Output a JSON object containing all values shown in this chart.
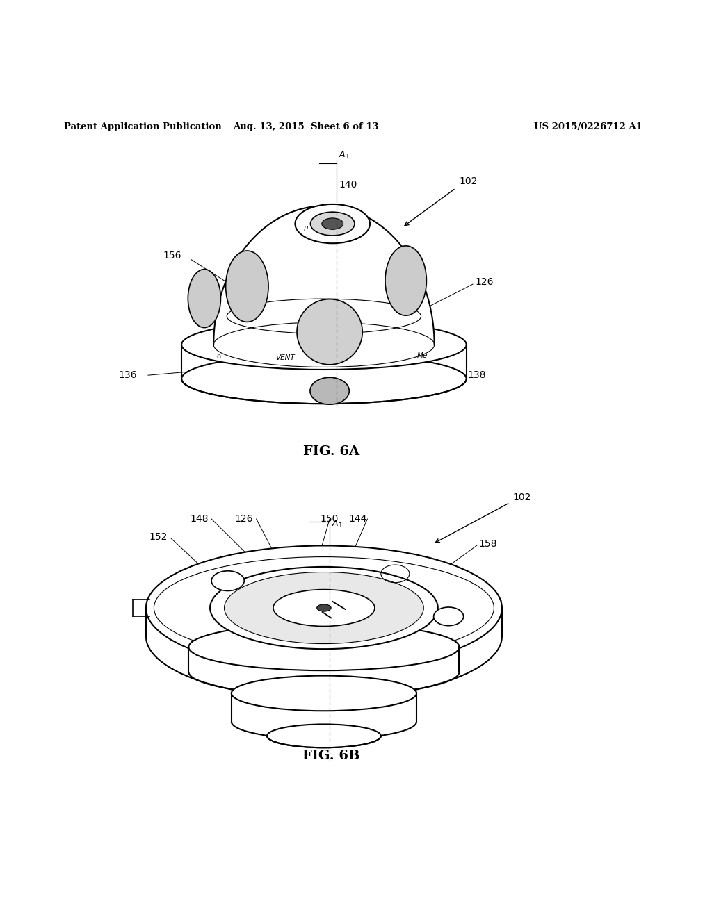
{
  "header_left": "Patent Application Publication",
  "header_mid": "Aug. 13, 2015  Sheet 6 of 13",
  "header_right": "US 2015/0226712 A1",
  "fig6a_label": "FIG. 6A",
  "fig6b_label": "FIG. 6B",
  "bg_color": "#ffffff",
  "line_color": "#000000"
}
